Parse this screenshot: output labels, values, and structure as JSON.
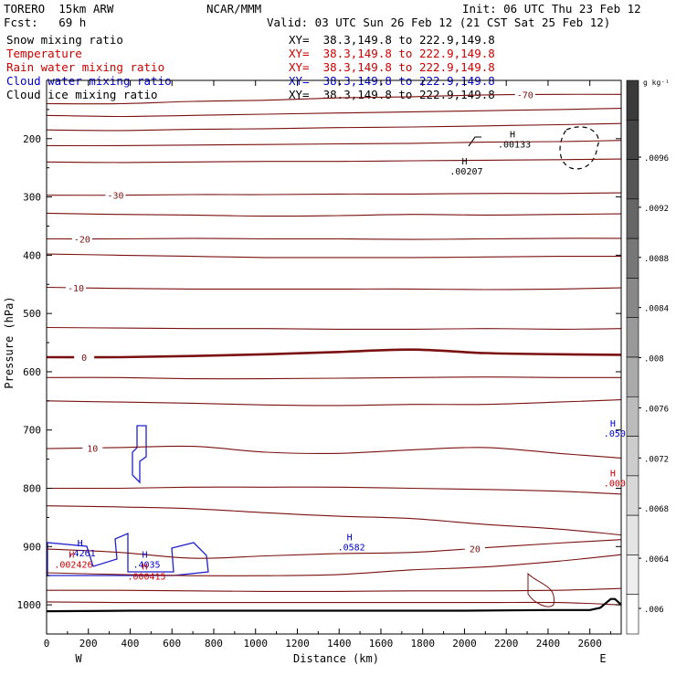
{
  "header": {
    "model": "TORERO  15km ARW",
    "center": "NCAR/MMM",
    "init": "Init: 06 UTC Thu 23 Feb 12",
    "fcst": "Fcst:   69 h",
    "valid": "Valid: 03 UTC Sun 26 Feb 12 (21 CST Sat 25 Feb 12)"
  },
  "fields": [
    {
      "label": "Snow mixing ratio",
      "xy": "XY=  38.3,149.8 to 222.9,149.8",
      "color": "#000000"
    },
    {
      "label": "Temperature",
      "xy": "XY=  38.3,149.8 to 222.9,149.8",
      "color": "#cc0000"
    },
    {
      "label": "Rain water mixing ratio",
      "xy": "XY=  38.3,149.8 to 222.9,149.8",
      "color": "#cc0000"
    },
    {
      "label": "Cloud water mixing ratio",
      "xy": "XY=  38.3,149.8 to 222.9,149.8",
      "color": "#0000cc"
    },
    {
      "label": "Cloud ice mixing ratio",
      "xy": "XY=  38.3,149.8 to 222.9,149.8",
      "color": "#000000"
    }
  ],
  "chart_data": {
    "type": "contour",
    "xlabel": "Distance (km)",
    "ylabel": "Pressure (hPa)",
    "xlim": [
      0,
      2750
    ],
    "ylim": [
      1050,
      100
    ],
    "x_ticks": [
      0,
      200,
      400,
      600,
      800,
      1000,
      1200,
      1400,
      1600,
      1800,
      2000,
      2200,
      2400,
      2600
    ],
    "y_ticks": [
      200,
      300,
      400,
      500,
      600,
      700,
      800,
      900,
      1000
    ],
    "x_left_label": "W",
    "x_right_label": "E",
    "colorbar": {
      "unit": "g kg⁻¹",
      "tick_labels": [
        ".0096",
        ".0092",
        ".0088",
        ".0084",
        ".008",
        ".0076",
        ".0072",
        ".0068",
        ".0064",
        ".006"
      ],
      "shades": [
        "#3a3a3a",
        "#444444",
        "#555555",
        "#666666",
        "#777777",
        "#888888",
        "#999999",
        "#aaaaaa",
        "#bbbbbb",
        "#cccccc",
        "#d8d8d8",
        "#e4e4e4",
        "#eeeeee",
        "#ffffff"
      ]
    },
    "temperature_contours": [
      {
        "label": "-70",
        "label_x": 2290,
        "y": [
          140,
          140,
          136,
          134,
          130,
          128,
          125,
          124,
          124
        ]
      },
      {
        "y": [
          160,
          162,
          160,
          158,
          156,
          154,
          152,
          150,
          148
        ]
      },
      {
        "y": [
          185,
          186,
          184,
          183,
          181,
          180,
          178,
          176,
          174
        ]
      },
      {
        "y": [
          212,
          212,
          211,
          210,
          209,
          208,
          206,
          205,
          203
        ]
      },
      {
        "y": [
          240,
          241,
          240,
          239,
          239,
          238,
          237,
          236,
          235
        ]
      },
      {
        "label": "-30",
        "label_x": 330,
        "y": [
          297,
          297,
          296,
          296,
          295,
          295,
          294,
          294,
          293
        ]
      },
      {
        "y": [
          328,
          330,
          331,
          333,
          332,
          330,
          331,
          330,
          329
        ]
      },
      {
        "label": "-20",
        "label_x": 170,
        "y": [
          372,
          372,
          371,
          372,
          372,
          373,
          372,
          371,
          371
        ]
      },
      {
        "y": [
          398,
          400,
          402,
          404,
          404,
          404,
          403,
          402,
          402
        ]
      },
      {
        "label": "-10",
        "label_x": 140,
        "y": [
          455,
          457,
          458,
          458,
          458,
          458,
          459,
          458,
          456
        ]
      },
      {
        "y": [
          524,
          525,
          526,
          526,
          527,
          527,
          526,
          527,
          526
        ]
      },
      {
        "label": "0",
        "label_x": 180,
        "y": [
          575,
          575,
          573,
          570,
          566,
          562,
          568,
          570,
          571
        ],
        "emphasis": true
      },
      {
        "y": [
          610,
          610,
          612,
          612,
          611,
          610,
          609,
          610,
          610
        ]
      },
      {
        "y": [
          650,
          652,
          654,
          657,
          658,
          656,
          656,
          652,
          648
        ]
      },
      {
        "label": "10",
        "label_x": 220,
        "y": [
          732,
          730,
          728,
          738,
          740,
          734,
          730,
          740,
          748
        ]
      },
      {
        "y": [
          800,
          800,
          798,
          798,
          798,
          800,
          802,
          805,
          810
        ]
      },
      {
        "y": [
          830,
          832,
          835,
          842,
          848,
          852,
          862,
          870,
          880
        ]
      },
      {
        "label": "20",
        "label_x": 2050,
        "y": [
          904,
          910,
          920,
          916,
          912,
          910,
          902,
          894,
          888
        ]
      },
      {
        "y": [
          945,
          948,
          950,
          950,
          948,
          940,
          935,
          925,
          914
        ]
      },
      {
        "y": [
          975,
          975,
          976,
          977,
          977,
          976,
          976,
          975,
          972
        ]
      },
      {
        "y": [
          995,
          996,
          996,
          996,
          996,
          996,
          996,
          996,
          1000
        ]
      }
    ],
    "contour_x": [
      0,
      350,
      700,
      1050,
      1400,
      1750,
      2100,
      2450,
      2750
    ],
    "maxima_labels": [
      {
        "text": "H",
        "sub": ".00207",
        "x": 2000,
        "p": 260,
        "color": "#000000"
      },
      {
        "text": "H",
        "sub": ".00133",
        "x": 2230,
        "p": 214,
        "color": "#000000"
      },
      {
        "text": "H",
        "sub": ".0582",
        "x": 1450,
        "p": 905,
        "color": "#0000cc"
      },
      {
        "text": "H",
        "sub": ".4261",
        "x": 160,
        "p": 915,
        "color": "#0000cc"
      },
      {
        "text": "H",
        "sub": ".4035",
        "x": 470,
        "p": 935,
        "color": "#0000cc"
      },
      {
        "text": "H",
        "sub": ".002426",
        "x": 120,
        "p": 935,
        "color": "#cc0000"
      },
      {
        "text": "H",
        "sub": ".000415",
        "x": 470,
        "p": 955,
        "color": "#cc0000"
      },
      {
        "text": "H",
        "sub": ".000",
        "x": 2710,
        "p": 795,
        "color": "#cc0000"
      },
      {
        "text": "H",
        "sub": ".050",
        "x": 2710,
        "p": 710,
        "color": "#0000cc"
      }
    ],
    "terrain": {
      "x": [
        0,
        400,
        800,
        1200,
        1600,
        2000,
        2400,
        2600,
        2650,
        2700,
        2720,
        2750
      ],
      "p": [
        1011,
        1010,
        1010,
        1010,
        1010,
        1010,
        1009,
        1009,
        1005,
        990,
        990,
        1000
      ]
    }
  }
}
